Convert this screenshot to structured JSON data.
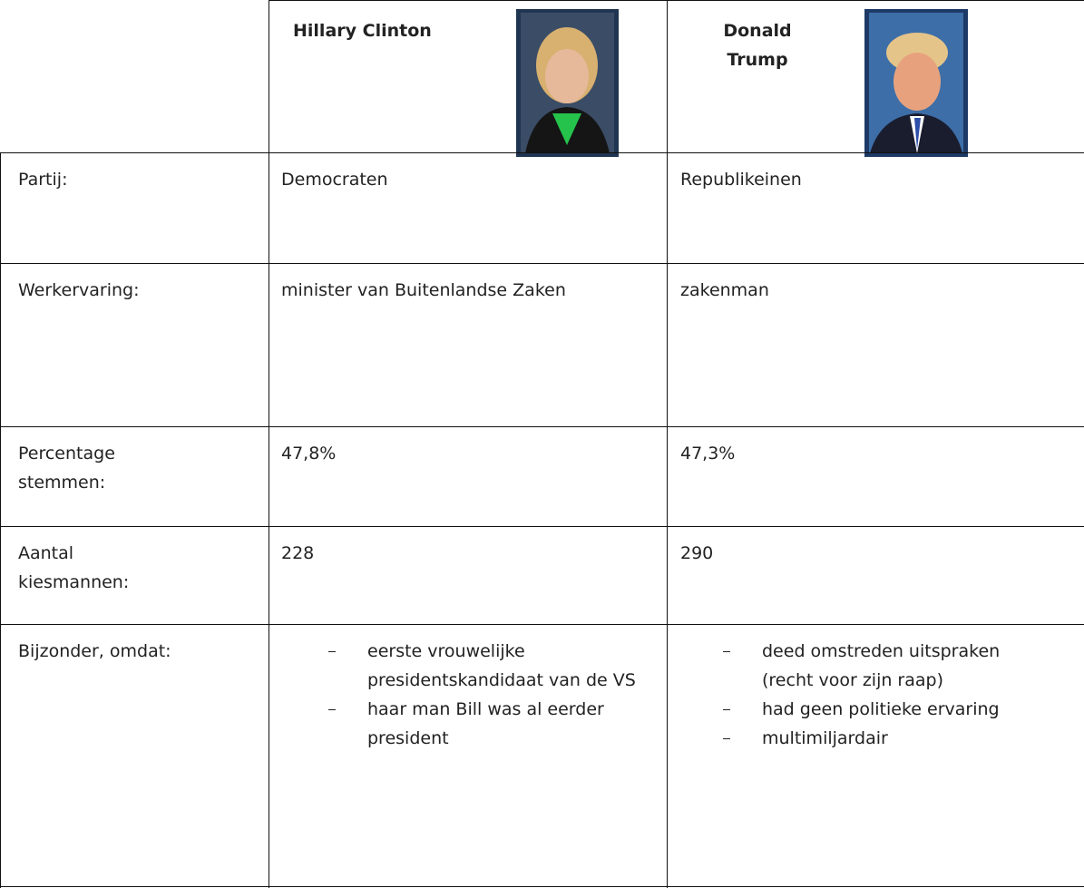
{
  "header": {
    "candidates": [
      {
        "name": "Hillary Clinton"
      },
      {
        "name": "Donald Trump"
      }
    ]
  },
  "table": {
    "rows": [
      [
        "Partij:",
        "Democraten",
        "Republikeinen"
      ],
      [
        "Werkervaring:",
        "minister van Buitenlandse Zaken",
        "zakenman"
      ],
      [
        "Percentage stemmen:",
        "47,8%",
        "47,3%"
      ],
      [
        "Aantal kiesmannen:",
        "228",
        "290"
      ]
    ]
  },
  "special": {
    "label": "Bijzonder, omdat:",
    "lists": [
      [
        "eerste vrouwelijke presidentskandidaat van de VS",
        "haar man Bill was al eerder president"
      ],
      [
        "deed omstreden uitspraken (recht voor zijn raap)",
        "had geen politieke ervaring",
        "multimiljardair"
      ]
    ]
  }
}
